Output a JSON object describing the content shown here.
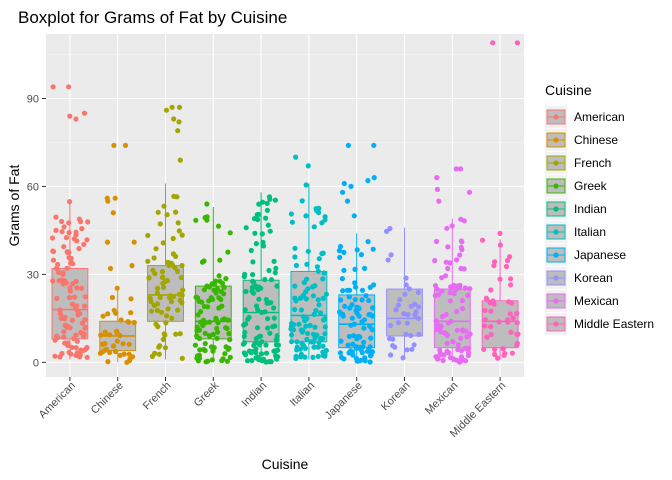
{
  "chart_data": {
    "type": "boxplot",
    "title": "Boxplot for Grams of Fat by Cuisine",
    "xlabel": "Cuisine",
    "ylabel": "Grams of Fat",
    "ylim": [
      -5,
      112
    ],
    "y_ticks": [
      0,
      30,
      60,
      90
    ],
    "grid": true,
    "legend": {
      "title": "Cuisine",
      "position": "right"
    },
    "categories": [
      "American",
      "Chinese",
      "French",
      "Greek",
      "Indian",
      "Italian",
      "Japanese",
      "Korean",
      "Mexican",
      "Middle Eastern"
    ],
    "colors": [
      "#F8766D",
      "#D89000",
      "#A3A500",
      "#39B600",
      "#00BF7D",
      "#00BFC4",
      "#00B0F6",
      "#9590FF",
      "#E76BF3",
      "#FF62BC"
    ],
    "box_fill": "#bdbdbd",
    "series": [
      {
        "name": "American",
        "min": 1,
        "q1": 8,
        "median": 18,
        "q3": 32,
        "max": 55,
        "outliers": [
          83,
          84,
          85,
          94,
          94
        ],
        "n": 110
      },
      {
        "name": "Chinese",
        "min": 0,
        "q1": 4,
        "median": 9,
        "q3": 14,
        "max": 26,
        "outliers": [
          32,
          33,
          41,
          41,
          51,
          55,
          56,
          56,
          74,
          74
        ],
        "n": 40
      },
      {
        "name": "French",
        "min": 1,
        "q1": 14,
        "median": 23,
        "q3": 33,
        "max": 61,
        "outliers": [
          69,
          79,
          82,
          83,
          86,
          87,
          87
        ],
        "n": 75
      },
      {
        "name": "Greek",
        "min": 0,
        "q1": 8,
        "median": 14,
        "q3": 26,
        "max": 53,
        "outliers": [
          54
        ],
        "n": 95
      },
      {
        "name": "Indian",
        "min": 0,
        "q1": 7,
        "median": 17,
        "q3": 28,
        "max": 58,
        "outliers": [],
        "n": 110
      },
      {
        "name": "Italian",
        "min": 1,
        "q1": 7,
        "median": 16,
        "q3": 31,
        "max": 61,
        "outliers": [
          67,
          70
        ],
        "n": 105
      },
      {
        "name": "Japanese",
        "min": 0,
        "q1": 5,
        "median": 13,
        "q3": 23,
        "max": 44,
        "outliers": [
          50,
          55,
          58,
          60,
          61,
          62,
          63,
          74,
          74
        ],
        "n": 90
      },
      {
        "name": "Korean",
        "min": 1,
        "q1": 9,
        "median": 15,
        "q3": 25,
        "max": 46,
        "outliers": [],
        "n": 35
      },
      {
        "name": "Mexican",
        "min": 0,
        "q1": 5,
        "median": 14,
        "q3": 25,
        "max": 49,
        "outliers": [
          55,
          58,
          59,
          63,
          66,
          66
        ],
        "n": 90
      },
      {
        "name": "Middle Eastern",
        "min": 1,
        "q1": 5,
        "median": 14,
        "q3": 21,
        "max": 42,
        "outliers": [
          44,
          109,
          109
        ],
        "n": 45
      }
    ]
  }
}
